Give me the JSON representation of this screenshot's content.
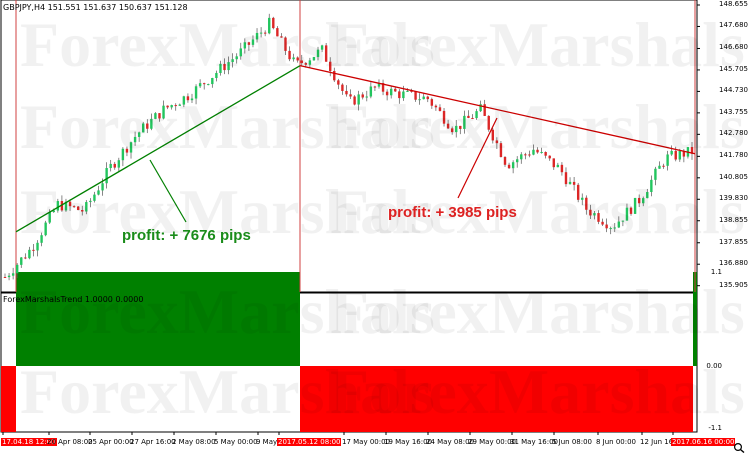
{
  "main_pane": {
    "title": "GBPJPY,H4  151.551 151.637 150.637 151.128",
    "price_min": 135.8,
    "price_max": 148.7,
    "price_labels": [
      "148.655",
      "147.680",
      "146.680",
      "145.705",
      "144.730",
      "143.755",
      "142.780",
      "141.780",
      "140.805",
      "139.830",
      "138.855",
      "137.855",
      "136.880",
      "135.905"
    ],
    "watermark": "ForexMarshals",
    "annotations": {
      "buy_profit": "profit: + 7676 pips",
      "sell_profit": "profit: + 3985 pips"
    },
    "colors": {
      "bull": "#22c55e",
      "bear": "#dc2626",
      "wick": "#555555",
      "buy_line": "#008000",
      "sell_line": "#cc0000"
    },
    "trend_lines": [
      {
        "from_price": 138.35,
        "to_price": 145.9,
        "color": "buy"
      },
      {
        "from_price": 145.9,
        "to_price": 141.9,
        "color": "sell"
      }
    ],
    "price_path": [
      136.3,
      137.6,
      139.6,
      139.3,
      141.3,
      142.8,
      143.9,
      144.6,
      145.6,
      146.6,
      147.8,
      145.9,
      146.6,
      144.2,
      144.9,
      144.6,
      144.4,
      143.0,
      143.9,
      141.4,
      142.1,
      141.2,
      139.4,
      138.6,
      139.8,
      141.7,
      142.0
    ]
  },
  "indicator_pane": {
    "title": "ForexMarshalsTrend 1.0000 0.0000",
    "scale_labels": [
      "1.1",
      "0.00",
      "-1.1"
    ],
    "signals": [
      {
        "value": -1,
        "color": "#ff0000"
      },
      {
        "value": 1,
        "color": "#008000"
      },
      {
        "value": -1,
        "color": "#ff0000"
      },
      {
        "value": 1,
        "color": "#008000"
      }
    ]
  },
  "time_axis": {
    "labels": [
      {
        "text": "17.04.18 12:00",
        "highlight": true
      },
      {
        "text": "20 Apr 08:00",
        "highlight": false
      },
      {
        "text": "25 Apr 00:00",
        "highlight": false
      },
      {
        "text": "27 Apr 16:00",
        "highlight": false
      },
      {
        "text": "2 May 08:00",
        "highlight": false
      },
      {
        "text": "5 May 00:00",
        "highlight": false
      },
      {
        "text": "9 May",
        "highlight": false
      },
      {
        "text": "2017.05.12 08:00",
        "highlight": true
      },
      {
        "text": "17 May 00:00",
        "highlight": false
      },
      {
        "text": "19 May 16:00",
        "highlight": false
      },
      {
        "text": "24 May 08:00",
        "highlight": false
      },
      {
        "text": "29 May 00:00",
        "highlight": false
      },
      {
        "text": "31 May 16:00",
        "highlight": false
      },
      {
        "text": "5 Jun 08:00",
        "highlight": false
      },
      {
        "text": "8 Jun 00:00",
        "highlight": false
      },
      {
        "text": "12 Jun 16",
        "highlight": false
      },
      {
        "text": "2017.06.16 00:00",
        "highlight": true
      }
    ]
  }
}
